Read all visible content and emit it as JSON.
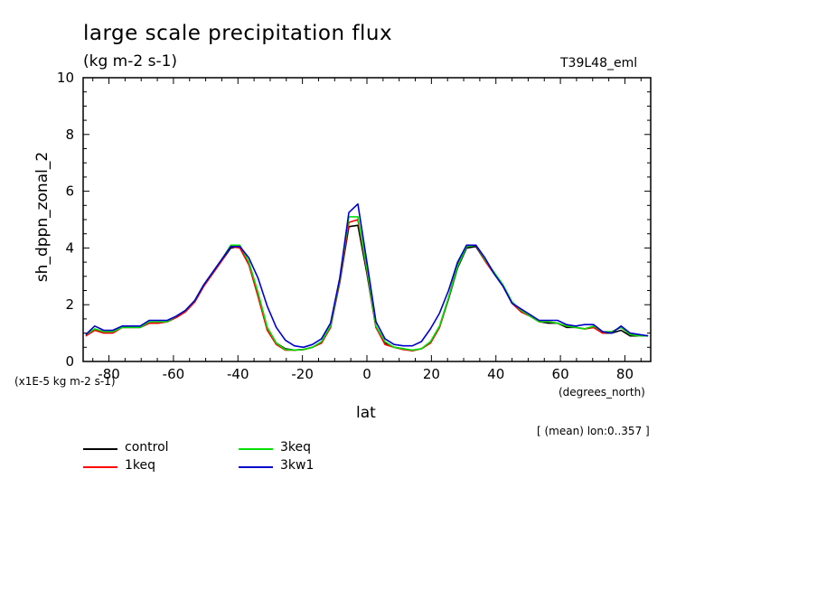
{
  "header": {
    "title": "large scale precipitation flux",
    "units": "(kg m-2 s-1)",
    "experiment": "T39L48_eml"
  },
  "footer": {
    "y_multiplier": "(x1E-5 kg m-2 s-1)",
    "x_units": "(degrees_north)",
    "mean_note": "[ (mean) lon:0..357 ]"
  },
  "chart_data": {
    "type": "line",
    "title": "large scale precipitation flux",
    "xlabel": "lat",
    "ylabel": "sh_dppn_zonal_2",
    "xlim": [
      -88,
      88
    ],
    "ylim": [
      0,
      10
    ],
    "xticks": [
      -80,
      -60,
      -40,
      -20,
      0,
      20,
      40,
      60,
      80
    ],
    "yticks": [
      0,
      2,
      4,
      6,
      8,
      10
    ],
    "x": [
      -87.2,
      -84.4,
      -81.6,
      -78.8,
      -75.9,
      -73.1,
      -70.3,
      -67.5,
      -64.7,
      -61.9,
      -59.1,
      -56.3,
      -53.4,
      -50.6,
      -47.8,
      -45.0,
      -42.2,
      -39.4,
      -36.6,
      -33.8,
      -30.9,
      -28.1,
      -25.3,
      -22.5,
      -19.7,
      -16.9,
      -14.1,
      -11.3,
      -8.4,
      -5.6,
      -2.8,
      0.0,
      2.8,
      5.6,
      8.4,
      11.3,
      14.1,
      16.9,
      19.7,
      22.5,
      25.3,
      28.1,
      30.9,
      33.8,
      36.6,
      39.4,
      42.2,
      45.0,
      47.8,
      50.6,
      53.4,
      56.3,
      59.1,
      61.9,
      64.7,
      67.5,
      70.3,
      73.1,
      75.9,
      78.8,
      81.6,
      84.4,
      87.2
    ],
    "series": [
      {
        "name": "control",
        "color": "#000000",
        "values": [
          0.9,
          1.1,
          1.05,
          1.05,
          1.2,
          1.2,
          1.2,
          1.35,
          1.35,
          1.4,
          1.55,
          1.75,
          2.1,
          2.65,
          3.1,
          3.55,
          4.0,
          4.05,
          3.5,
          2.4,
          1.2,
          0.65,
          0.45,
          0.4,
          0.42,
          0.5,
          0.65,
          1.2,
          2.8,
          4.75,
          4.8,
          3.1,
          1.2,
          0.65,
          0.5,
          0.45,
          0.38,
          0.45,
          0.65,
          1.2,
          2.2,
          3.3,
          4.0,
          4.05,
          3.55,
          3.1,
          2.65,
          2.05,
          1.75,
          1.6,
          1.4,
          1.35,
          1.35,
          1.2,
          1.2,
          1.15,
          1.2,
          1.0,
          1.0,
          1.1,
          0.9,
          0.9,
          0.9
        ]
      },
      {
        "name": "1keq",
        "color": "#ff0000",
        "values": [
          0.9,
          1.1,
          1.0,
          1.0,
          1.2,
          1.2,
          1.2,
          1.35,
          1.35,
          1.4,
          1.55,
          1.75,
          2.1,
          2.65,
          3.1,
          3.55,
          4.05,
          4.0,
          3.4,
          2.3,
          1.1,
          0.6,
          0.4,
          0.4,
          0.42,
          0.5,
          0.65,
          1.2,
          2.85,
          4.9,
          5.0,
          3.2,
          1.2,
          0.6,
          0.5,
          0.42,
          0.38,
          0.45,
          0.65,
          1.2,
          2.25,
          3.4,
          4.1,
          4.1,
          3.55,
          3.1,
          2.65,
          2.05,
          1.75,
          1.6,
          1.4,
          1.4,
          1.35,
          1.25,
          1.2,
          1.15,
          1.2,
          1.0,
          1.05,
          1.2,
          0.95,
          0.9,
          0.9
        ]
      },
      {
        "name": "3keq",
        "color": "#00e000",
        "values": [
          0.95,
          1.15,
          1.05,
          1.05,
          1.2,
          1.2,
          1.2,
          1.4,
          1.4,
          1.4,
          1.6,
          1.8,
          2.15,
          2.7,
          3.15,
          3.6,
          4.1,
          4.1,
          3.5,
          2.45,
          1.2,
          0.65,
          0.42,
          0.4,
          0.42,
          0.5,
          0.7,
          1.25,
          2.9,
          5.1,
          5.1,
          3.25,
          1.25,
          0.7,
          0.5,
          0.45,
          0.4,
          0.45,
          0.7,
          1.25,
          2.25,
          3.35,
          4.05,
          4.1,
          3.6,
          3.15,
          2.7,
          2.1,
          1.8,
          1.6,
          1.4,
          1.4,
          1.35,
          1.25,
          1.2,
          1.15,
          1.25,
          1.05,
          1.05,
          1.2,
          0.95,
          0.9,
          0.9
        ]
      },
      {
        "name": "3kw1",
        "color": "#0000cc",
        "values": [
          0.95,
          1.25,
          1.1,
          1.1,
          1.25,
          1.25,
          1.25,
          1.45,
          1.45,
          1.45,
          1.6,
          1.8,
          2.15,
          2.7,
          3.15,
          3.6,
          4.05,
          4.05,
          3.65,
          2.95,
          1.95,
          1.2,
          0.75,
          0.55,
          0.5,
          0.6,
          0.8,
          1.35,
          2.95,
          5.25,
          5.55,
          3.5,
          1.4,
          0.8,
          0.6,
          0.55,
          0.55,
          0.7,
          1.15,
          1.7,
          2.5,
          3.5,
          4.1,
          4.1,
          3.65,
          3.1,
          2.65,
          2.05,
          1.85,
          1.65,
          1.45,
          1.45,
          1.45,
          1.3,
          1.25,
          1.3,
          1.3,
          1.05,
          1.0,
          1.25,
          1.0,
          0.95,
          0.9
        ]
      }
    ],
    "legend": [
      {
        "name": "control",
        "color": "#000000"
      },
      {
        "name": "1keq",
        "color": "#ff0000"
      },
      {
        "name": "3keq",
        "color": "#00e000"
      },
      {
        "name": "3kw1",
        "color": "#0000cc"
      }
    ]
  }
}
